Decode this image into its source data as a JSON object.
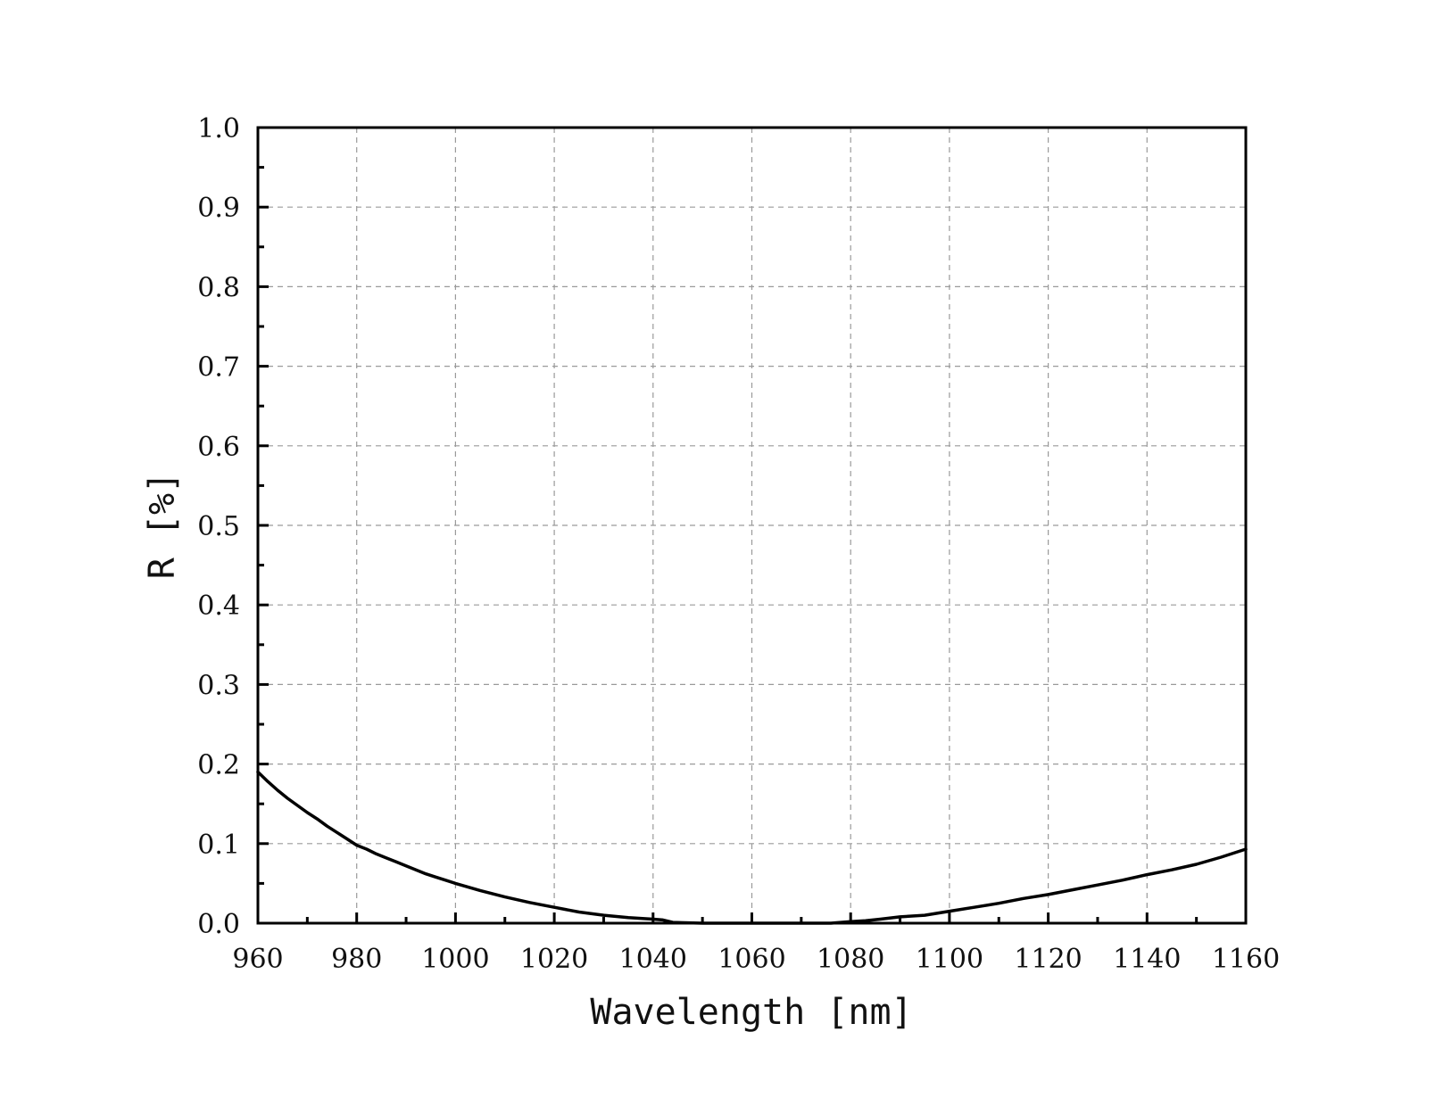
{
  "chart_data": {
    "type": "line",
    "xlabel": "Wavelength [nm]",
    "ylabel": "R [%]",
    "xlim": [
      960,
      1160
    ],
    "ylim": [
      0.0,
      1.0
    ],
    "x_ticks": [
      "960",
      "980",
      "1000",
      "1020",
      "1040",
      "1060",
      "1080",
      "1100",
      "1120",
      "1140",
      "1160"
    ],
    "y_ticks": [
      "0.0",
      "0.1",
      "0.2",
      "0.3",
      "0.4",
      "0.5",
      "0.6",
      "0.7",
      "0.8",
      "0.9",
      "1.0"
    ],
    "grid": true,
    "line_color": "#000000",
    "grid_color": "#9a9a9a",
    "series": [
      {
        "x": [
          960,
          962,
          964,
          966,
          968,
          970,
          972,
          974,
          976,
          978,
          980,
          982,
          984,
          986,
          988,
          990,
          992,
          994,
          996,
          998,
          1000,
          1005,
          1010,
          1015,
          1020,
          1025,
          1030,
          1035,
          1040,
          1042,
          1044,
          1050,
          1060,
          1070,
          1076,
          1080,
          1083,
          1086,
          1090,
          1095,
          1100,
          1105,
          1110,
          1115,
          1120,
          1125,
          1130,
          1135,
          1140,
          1145,
          1150,
          1155,
          1160
        ],
        "y": [
          0.19,
          0.178,
          0.167,
          0.157,
          0.148,
          0.139,
          0.131,
          0.122,
          0.114,
          0.106,
          0.098,
          0.093,
          0.087,
          0.082,
          0.077,
          0.072,
          0.067,
          0.062,
          0.058,
          0.054,
          0.05,
          0.041,
          0.033,
          0.026,
          0.02,
          0.014,
          0.01,
          0.007,
          0.005,
          0.004,
          0.001,
          0.0,
          0.0,
          0.0,
          0.0,
          0.002,
          0.003,
          0.005,
          0.008,
          0.01,
          0.015,
          0.02,
          0.025,
          0.031,
          0.036,
          0.042,
          0.048,
          0.054,
          0.061,
          0.067,
          0.074,
          0.083,
          0.093
        ]
      }
    ]
  }
}
